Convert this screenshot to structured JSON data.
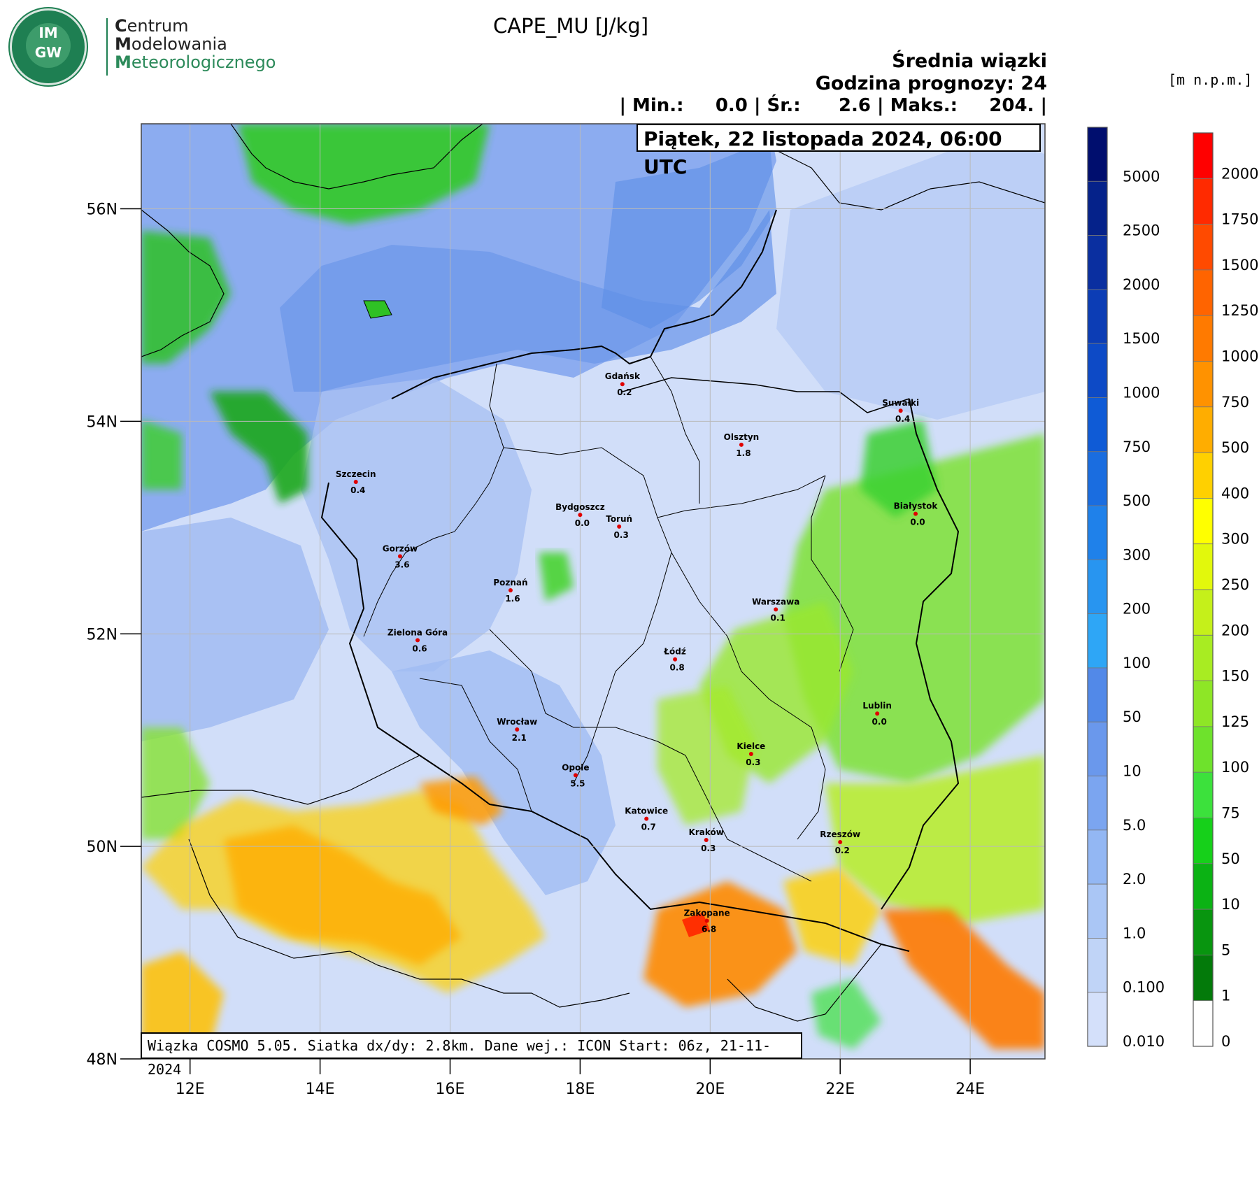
{
  "logo": {
    "badge_text": "IM GW",
    "line1_initial": "C",
    "line1_rest": "entrum",
    "line2_initial": "M",
    "line2_rest": "odelowania",
    "line3_initial": "M",
    "line3_rest": "eteorologicznego"
  },
  "title": "CAPE_MU [J/kg]",
  "header": {
    "line1": "Średnia wiązki",
    "line2": "Godzina prognozy: 24",
    "stats": "| Min.:     0.0 | Śr.:      2.6 | Maks.:     204. |"
  },
  "date_label": "Piątek, 22 listopada 2024, 06:00 UTC",
  "elevation_unit": "[m n.p.m.]",
  "footer": "Wiązka COSMO 5.05. Siatka dx/dy: 2.8km. Dane wej.: ICON Start: 06z, 21-11-2024",
  "axes": {
    "lat_labels": [
      "56N",
      "54N",
      "52N",
      "50N",
      "48N"
    ],
    "lon_labels": [
      "12E",
      "14E",
      "16E",
      "18E",
      "20E",
      "22E",
      "24E"
    ],
    "lat_range": [
      48,
      56.8
    ],
    "lon_range": [
      11.25,
      25.15
    ]
  },
  "cape_colorbar": {
    "labels": [
      "5000",
      "2500",
      "2000",
      "1500",
      "1000",
      "750",
      "500",
      "300",
      "200",
      "100",
      "50",
      "10",
      "5.0",
      "2.0",
      "1.0",
      "0.100",
      "0.010"
    ],
    "colors": [
      "#000e6e",
      "#05228a",
      "#0a2fa0",
      "#0c3db5",
      "#0d4ac6",
      "#0f5bd6",
      "#1a6de0",
      "#1f81ea",
      "#2895f0",
      "#2ea6f6",
      "#5289e8",
      "#6a98ec",
      "#7ba5f0",
      "#93b7f3",
      "#aac6f5",
      "#c0d4f7",
      "#d4e0fa"
    ]
  },
  "elevation_colorbar": {
    "labels": [
      "2000",
      "1750",
      "1500",
      "1250",
      "1000",
      "750",
      "500",
      "400",
      "300",
      "250",
      "200",
      "150",
      "125",
      "100",
      "75",
      "50",
      "10",
      "5",
      "1",
      "0"
    ],
    "colors": [
      "#ff0000",
      "#ff2a00",
      "#ff4a00",
      "#ff6400",
      "#ff7a00",
      "#ff9200",
      "#ffad00",
      "#ffd000",
      "#ffff00",
      "#e2f80c",
      "#c5f01a",
      "#a8ec22",
      "#8ee626",
      "#6ee22c",
      "#3ce13c",
      "#16d01a",
      "#0bb214",
      "#08950f",
      "#037a0a",
      "#ffffff"
    ]
  },
  "cities": [
    {
      "name": "Gdańsk",
      "value": "0.2",
      "lon": 18.65,
      "lat": 54.35
    },
    {
      "name": "Suwałki",
      "value": "0.4",
      "lon": 22.93,
      "lat": 54.1
    },
    {
      "name": "Olsztyn",
      "value": "1.8",
      "lon": 20.48,
      "lat": 53.78
    },
    {
      "name": "Szczecin",
      "value": "0.4",
      "lon": 14.55,
      "lat": 53.43
    },
    {
      "name": "Bydgoszcz",
      "value": "0.0",
      "lon": 18.0,
      "lat": 53.12
    },
    {
      "name": "Toruń",
      "value": "0.3",
      "lon": 18.6,
      "lat": 53.01
    },
    {
      "name": "Białystok",
      "value": "0.0",
      "lon": 23.16,
      "lat": 53.13
    },
    {
      "name": "Gorzów",
      "value": "3.6",
      "lon": 15.23,
      "lat": 52.73
    },
    {
      "name": "Poznań",
      "value": "1.6",
      "lon": 16.93,
      "lat": 52.41
    },
    {
      "name": "Warszawa",
      "value": "0.1",
      "lon": 21.01,
      "lat": 52.23
    },
    {
      "name": "Zielona Góra",
      "value": "0.6",
      "lon": 15.5,
      "lat": 51.94
    },
    {
      "name": "Łódź",
      "value": "0.8",
      "lon": 19.46,
      "lat": 51.76
    },
    {
      "name": "Lublin",
      "value": "0.0",
      "lon": 22.57,
      "lat": 51.25
    },
    {
      "name": "Wrocław",
      "value": "2.1",
      "lon": 17.03,
      "lat": 51.1
    },
    {
      "name": "Kielce",
      "value": "0.3",
      "lon": 20.63,
      "lat": 50.87
    },
    {
      "name": "Opole",
      "value": "5.5",
      "lon": 17.93,
      "lat": 50.67
    },
    {
      "name": "Katowice",
      "value": "0.7",
      "lon": 19.02,
      "lat": 50.26
    },
    {
      "name": "Kraków",
      "value": "0.3",
      "lon": 19.94,
      "lat": 50.06
    },
    {
      "name": "Rzeszów",
      "value": "0.2",
      "lon": 22.0,
      "lat": 50.04
    },
    {
      "name": "Zakopane",
      "value": "6.8",
      "lon": 19.95,
      "lat": 49.3
    }
  ]
}
